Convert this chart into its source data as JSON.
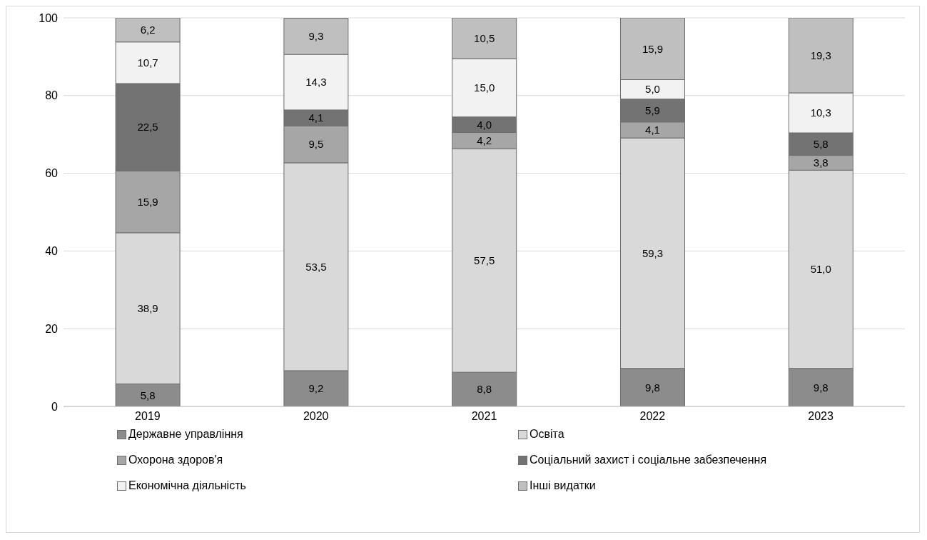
{
  "chart_data": {
    "type": "bar",
    "stacked": true,
    "categories": [
      "2019",
      "2020",
      "2021",
      "2022",
      "2023"
    ],
    "ylim": [
      0,
      100
    ],
    "yticks": [
      0,
      20,
      40,
      60,
      80,
      100
    ],
    "grid": "y",
    "legend": "bottom",
    "series": [
      {
        "name": "Державне управління",
        "color": "#8c8c8c",
        "values": [
          5.8,
          9.2,
          8.8,
          9.8,
          9.8
        ],
        "value_labels": [
          "5,8",
          "9,2",
          "8,8",
          "9,8",
          "9,8"
        ]
      },
      {
        "name": "Освіта",
        "color": "#d9d9d9",
        "values": [
          38.9,
          53.5,
          57.5,
          59.3,
          51.0
        ],
        "value_labels": [
          "38,9",
          "53,5",
          "57,5",
          "59,3",
          "51,0"
        ]
      },
      {
        "name": "Охорона здоров'я",
        "color": "#a6a6a6",
        "values": [
          15.9,
          9.5,
          4.2,
          4.1,
          3.8
        ],
        "value_labels": [
          "15,9",
          "9,5",
          "4,2",
          "4,1",
          "3,8"
        ]
      },
      {
        "name": "Соціальний захист і соціальне забезпечення",
        "color": "#737373",
        "values": [
          22.5,
          4.1,
          4.0,
          5.9,
          5.8
        ],
        "value_labels": [
          "22,5",
          "4,1",
          "4,0",
          "5,9",
          "5,8"
        ]
      },
      {
        "name": "Економічна діяльність",
        "color": "#f2f2f2",
        "values": [
          10.7,
          14.3,
          15.0,
          5.0,
          10.3
        ],
        "value_labels": [
          "10,7",
          "14,3",
          "15,0",
          "5,0",
          "10,3"
        ]
      },
      {
        "name": "Інші видатки",
        "color": "#bfbfbf",
        "values": [
          6.2,
          9.3,
          10.5,
          15.9,
          19.3
        ],
        "value_labels": [
          "6,2",
          "9,3",
          "10,5",
          "15,9",
          "19,3"
        ]
      }
    ]
  }
}
